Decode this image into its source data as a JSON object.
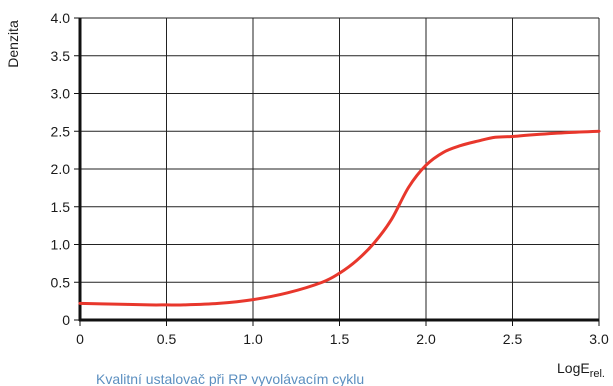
{
  "chart_data": {
    "type": "line",
    "title": "",
    "ylabel": "Denzita",
    "xlabel": {
      "main": "LogE",
      "sub": "rel."
    },
    "caption": "Kvalitní ustalovač při RP vyvolávacím cyklu",
    "xlim": [
      0,
      3.0
    ],
    "ylim": [
      0,
      4.0
    ],
    "x_ticks": [
      "0",
      "0.5",
      "1.0",
      "1.5",
      "2.0",
      "2.5",
      "3.0"
    ],
    "x_tick_values": [
      0,
      0.5,
      1.0,
      1.5,
      2.0,
      2.5,
      3.0
    ],
    "y_ticks": [
      "0",
      "0.5",
      "1.0",
      "1.5",
      "2.0",
      "2.5",
      "3.0",
      "3.5",
      "4.0"
    ],
    "y_tick_values": [
      0,
      0.5,
      1.0,
      1.5,
      2.0,
      2.5,
      3.0,
      3.5,
      4.0
    ],
    "grid": true,
    "series": [
      {
        "color": "#e8372c",
        "x": [
          0,
          0.2,
          0.4,
          0.5,
          0.6,
          0.8,
          1.0,
          1.2,
          1.4,
          1.5,
          1.6,
          1.7,
          1.8,
          1.9,
          2.0,
          2.1,
          2.2,
          2.3,
          2.4,
          2.5,
          2.6,
          2.8,
          3.0
        ],
        "y": [
          0.22,
          0.21,
          0.2,
          0.2,
          0.2,
          0.22,
          0.27,
          0.36,
          0.5,
          0.62,
          0.79,
          1.02,
          1.33,
          1.76,
          2.05,
          2.22,
          2.31,
          2.37,
          2.42,
          2.43,
          2.45,
          2.48,
          2.5
        ]
      }
    ]
  }
}
